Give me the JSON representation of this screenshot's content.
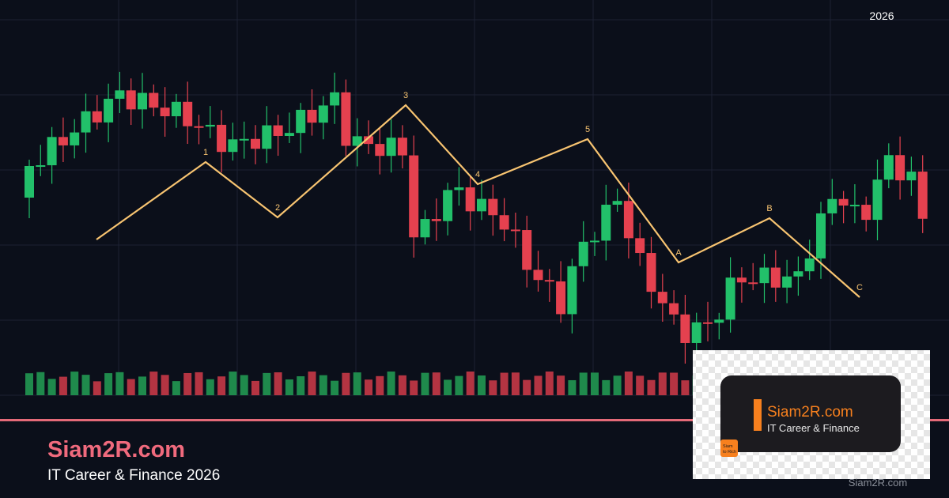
{
  "year_label": "2026",
  "wave_labels": [
    "1",
    "2",
    "3",
    "4",
    "5",
    "A",
    "B",
    "C"
  ],
  "footer": {
    "title": "Siam2R.com",
    "subtitle": "IT Career & Finance 2026"
  },
  "logo": {
    "title": "Siam2R.com",
    "subtitle": "IT Career & Finance",
    "badge": [
      "Siam",
      "to Rich"
    ]
  },
  "watermark": "Siam2R.com"
}
